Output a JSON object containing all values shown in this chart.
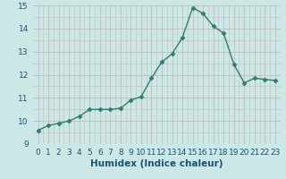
{
  "x": [
    0,
    1,
    2,
    3,
    4,
    5,
    6,
    7,
    8,
    9,
    10,
    11,
    12,
    13,
    14,
    15,
    16,
    17,
    18,
    19,
    20,
    21,
    22,
    23
  ],
  "y": [
    9.6,
    9.8,
    9.9,
    10.0,
    10.2,
    10.5,
    10.5,
    10.5,
    10.55,
    10.9,
    11.05,
    11.85,
    12.55,
    12.9,
    13.6,
    14.9,
    14.65,
    14.1,
    13.8,
    12.45,
    11.65,
    11.85,
    11.8,
    11.75
  ],
  "line_color": "#2e7d6e",
  "marker": "D",
  "marker_size": 2.5,
  "bg_color": "#cce8e6",
  "grid_major_color": "#c8b8b8",
  "grid_minor_color": "#c8b8b8",
  "xlabel": "Humidex (Indice chaleur)",
  "tick_color": "#1a5276",
  "ylim": [
    9,
    15
  ],
  "xlim": [
    -0.5,
    23.5
  ],
  "yticks": [
    9,
    10,
    11,
    12,
    13,
    14,
    15
  ],
  "xticks": [
    0,
    1,
    2,
    3,
    4,
    5,
    6,
    7,
    8,
    9,
    10,
    11,
    12,
    13,
    14,
    15,
    16,
    17,
    18,
    19,
    20,
    21,
    22,
    23
  ],
  "tick_fontsize": 6.5,
  "xlabel_fontsize": 7.5,
  "linewidth": 1.0
}
